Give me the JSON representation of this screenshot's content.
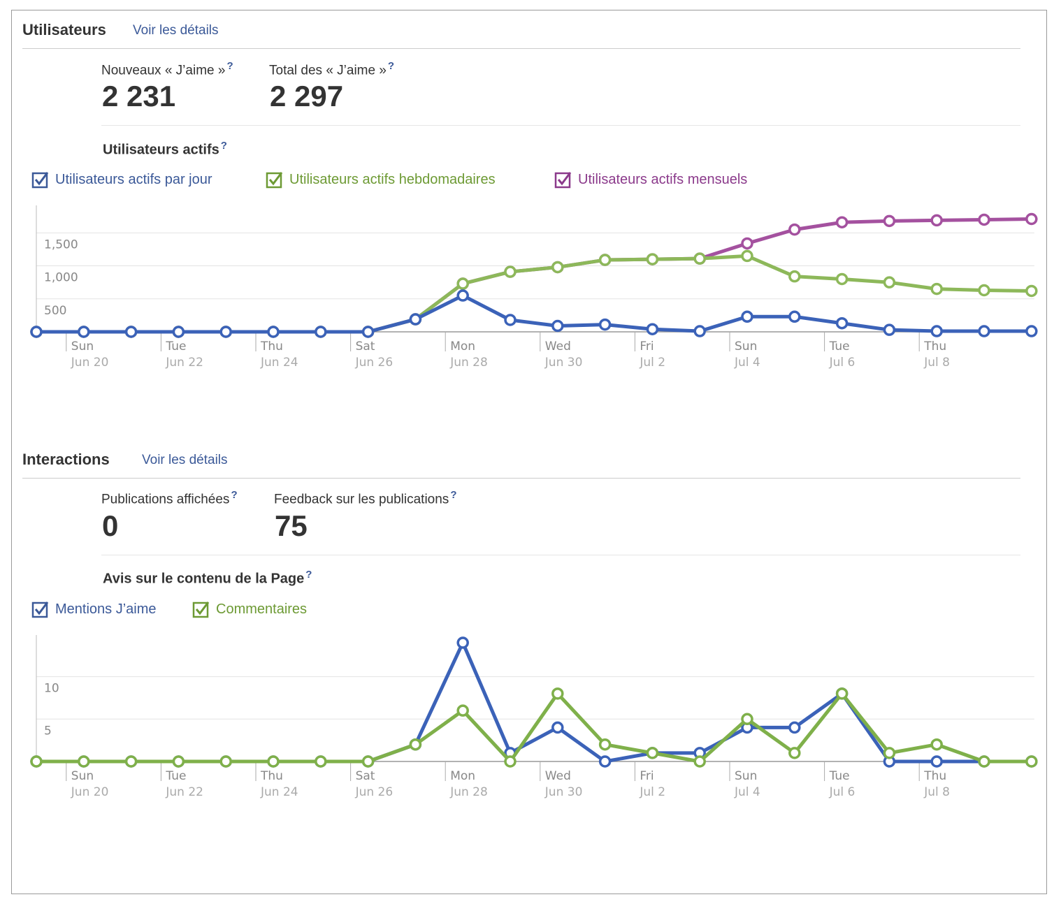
{
  "users": {
    "title": "Utilisateurs",
    "details_link": "Voir les détails",
    "stats": [
      {
        "label": "Nouveaux « J’aime »",
        "help": "?",
        "value": "2 231"
      },
      {
        "label": "Total des « J’aime »",
        "help": "?",
        "value": "2 297"
      }
    ],
    "chart_title": "Utilisateurs actifs",
    "chart_help": "?",
    "legend": [
      {
        "label": "Utilisateurs actifs par jour",
        "color": "#3b5998",
        "checked": true
      },
      {
        "label": "Utilisateurs actifs hebdomadaires",
        "color": "#6d9a34",
        "checked": true
      },
      {
        "label": "Utilisateurs actifs mensuels",
        "color": "#8b3a8b",
        "checked": true
      }
    ]
  },
  "interactions": {
    "title": "Interactions",
    "details_link": "Voir les détails",
    "stats": [
      {
        "label": "Publications affichées",
        "help": "?",
        "value": "0"
      },
      {
        "label": "Feedback sur les publications",
        "help": "?",
        "value": "75"
      }
    ],
    "chart_title": "Avis sur le contenu de la Page",
    "chart_help": "?",
    "legend": [
      {
        "label": "Mentions J’aime",
        "color": "#3b5998",
        "checked": true
      },
      {
        "label": "Commentaires",
        "color": "#6d9a34",
        "checked": true
      }
    ]
  },
  "chart_data": [
    {
      "type": "line",
      "x": [
        "Jun 19",
        "Jun 20",
        "Jun 21",
        "Jun 22",
        "Jun 23",
        "Jun 24",
        "Jun 25",
        "Jun 26",
        "Jun 27",
        "Jun 28",
        "Jun 29",
        "Jun 30",
        "Jul 1",
        "Jul 2",
        "Jul 3",
        "Jul 4",
        "Jul 5",
        "Jul 6",
        "Jul 7",
        "Jul 8",
        "Jul 9",
        "Jul 10"
      ],
      "tick_labels": [
        {
          "day": "Sun",
          "date": "Jun 20"
        },
        {
          "day": "Tue",
          "date": "Jun 22"
        },
        {
          "day": "Thu",
          "date": "Jun 24"
        },
        {
          "day": "Sat",
          "date": "Jun 26"
        },
        {
          "day": "Mon",
          "date": "Jun 28"
        },
        {
          "day": "Wed",
          "date": "Jun 30"
        },
        {
          "day": "Fri",
          "date": "Jul 2"
        },
        {
          "day": "Sun",
          "date": "Jul 4"
        },
        {
          "day": "Tue",
          "date": "Jul 6"
        },
        {
          "day": "Thu",
          "date": "Jul 8"
        }
      ],
      "yticks": [
        {
          "value": 500,
          "label": "500"
        },
        {
          "value": 1000,
          "label": "1,000"
        },
        {
          "value": 1500,
          "label": "1,500"
        }
      ],
      "ylim": [
        0,
        1800
      ],
      "grid": true,
      "series": [
        {
          "name": "Utilisateurs actifs mensuels",
          "color": "#a4519f",
          "values": [
            0,
            0,
            0,
            0,
            0,
            0,
            0,
            0,
            190,
            730,
            910,
            980,
            1090,
            1100,
            1110,
            1340,
            1550,
            1660,
            1680,
            1690,
            1700,
            1710
          ]
        },
        {
          "name": "Utilisateurs actifs hebdomadaires",
          "color": "#8db85a",
          "values": [
            0,
            0,
            0,
            0,
            0,
            0,
            0,
            0,
            190,
            730,
            910,
            980,
            1090,
            1100,
            1110,
            1150,
            840,
            800,
            750,
            650,
            630,
            620
          ]
        },
        {
          "name": "Utilisateurs actifs par jour",
          "color": "#3b62b8",
          "values": [
            0,
            0,
            0,
            0,
            0,
            0,
            0,
            0,
            190,
            550,
            180,
            90,
            110,
            40,
            10,
            230,
            230,
            130,
            30,
            10,
            10,
            10
          ]
        }
      ]
    },
    {
      "type": "line",
      "x": [
        "Jun 19",
        "Jun 20",
        "Jun 21",
        "Jun 22",
        "Jun 23",
        "Jun 24",
        "Jun 25",
        "Jun 26",
        "Jun 27",
        "Jun 28",
        "Jun 29",
        "Jun 30",
        "Jul 1",
        "Jul 2",
        "Jul 3",
        "Jul 4",
        "Jul 5",
        "Jul 6",
        "Jul 7",
        "Jul 8",
        "Jul 9",
        "Jul 10"
      ],
      "tick_labels": [
        {
          "day": "Sun",
          "date": "Jun 20"
        },
        {
          "day": "Tue",
          "date": "Jun 22"
        },
        {
          "day": "Thu",
          "date": "Jun 24"
        },
        {
          "day": "Sat",
          "date": "Jun 26"
        },
        {
          "day": "Mon",
          "date": "Jun 28"
        },
        {
          "day": "Wed",
          "date": "Jun 30"
        },
        {
          "day": "Fri",
          "date": "Jul 2"
        },
        {
          "day": "Sun",
          "date": "Jul 4"
        },
        {
          "day": "Tue",
          "date": "Jul 6"
        },
        {
          "day": "Thu",
          "date": "Jul 8"
        }
      ],
      "yticks": [
        {
          "value": 5,
          "label": "5"
        },
        {
          "value": 10,
          "label": "10"
        }
      ],
      "ylim": [
        0,
        14
      ],
      "grid": true,
      "series": [
        {
          "name": "Mentions J’aime",
          "color": "#3b62b8",
          "values": [
            0,
            0,
            0,
            0,
            0,
            0,
            0,
            0,
            2,
            14,
            1,
            4,
            0,
            1,
            1,
            4,
            4,
            8,
            0,
            0,
            0,
            0
          ]
        },
        {
          "name": "Commentaires",
          "color": "#7fb04a",
          "values": [
            0,
            0,
            0,
            0,
            0,
            0,
            0,
            0,
            2,
            6,
            0,
            8,
            2,
            1,
            0,
            5,
            1,
            8,
            1,
            2,
            0,
            0
          ]
        }
      ]
    }
  ]
}
